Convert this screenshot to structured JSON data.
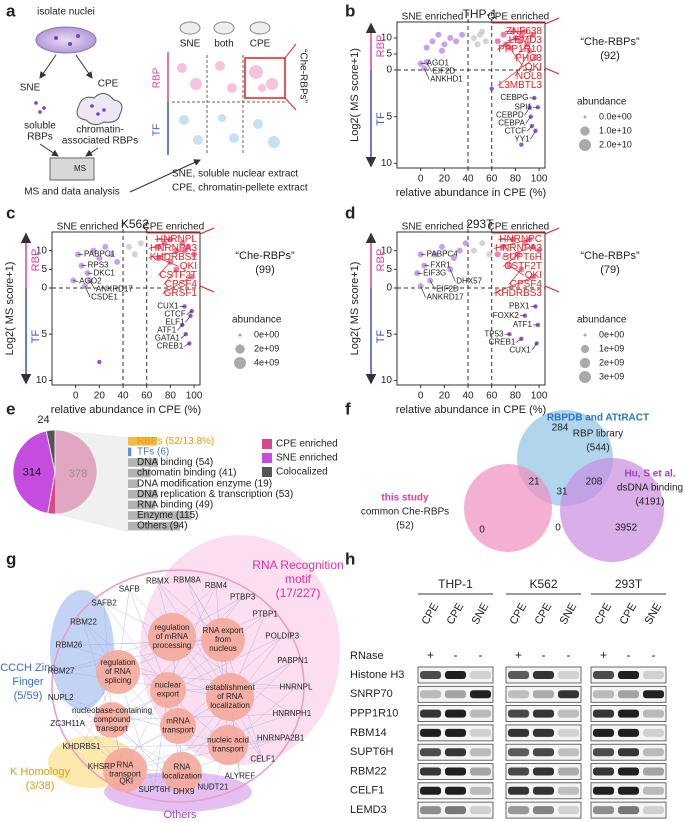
{
  "panel_labels": [
    "a",
    "b",
    "c",
    "d",
    "e",
    "f",
    "g",
    "h"
  ],
  "schematic": {
    "title": "isolate nuclei",
    "fractions": [
      "SNE",
      "CPE"
    ],
    "soluble": [
      "soluble",
      "RBPs"
    ],
    "chromatin": [
      "chromatin-",
      "associated RBPs"
    ],
    "ms_box": "MS",
    "ms": "MS and data analysis",
    "columns": [
      "SNE",
      "both",
      "CPE"
    ],
    "rows": [
      "RBP",
      "TF"
    ],
    "che": "“Che-RBPs”",
    "notes": [
      "SNE, soluble nuclear extract",
      "CPE, chromatin-pellete extract"
    ]
  },
  "chart_data": [
    {
      "type": "scatter",
      "title": "THP-1",
      "xlabel": "relative abundance in CPE (%)",
      "ylabel": "Log2( MS score+1)",
      "xlim": [
        -20,
        105
      ],
      "xticks": [
        0,
        20,
        40,
        60,
        80,
        100
      ],
      "ylim": [
        0,
        15
      ],
      "yticks": [
        0,
        5,
        10
      ],
      "tf_ylim": [
        0,
        10.5
      ],
      "tf_yticks": [
        5,
        10
      ],
      "dividers": [
        40,
        60
      ],
      "annotations": {
        "sne": "SNE enriched",
        "cpe": "CPE enriched",
        "rbp": "RBP",
        "tf": "TF",
        "che": "“Che-RBPs”",
        "count": "(92)"
      },
      "legend_title": "abundance",
      "size_ticks": [
        {
          "value": 0,
          "label": "0.0e+00"
        },
        {
          "value": 10000000000,
          "label": "1.0e+10"
        },
        {
          "value": 20000000000,
          "label": "2.0e+10"
        }
      ],
      "colors": {
        "sne": "#b98ae8",
        "both": "#c9c9c9",
        "cpe": "#e9609a",
        "tf": "#7b3fbf",
        "che_label": "#e8221f",
        "label": "#222222"
      },
      "rbp": {
        "x": [
          88,
          95,
          80,
          90,
          75,
          92,
          97,
          70,
          78,
          85,
          65,
          72,
          84,
          45,
          50,
          55,
          48,
          52,
          10,
          15,
          20,
          25,
          30,
          35,
          5,
          18,
          0,
          5,
          3
        ],
        "values": [
          12,
          11,
          10,
          8,
          7,
          6,
          4,
          11,
          12,
          11,
          9,
          8,
          9,
          10,
          11,
          9,
          8,
          12,
          9,
          11,
          8,
          10,
          9,
          11,
          7,
          6,
          2,
          2.5,
          0.5
        ],
        "labels": [
          "ZNF638",
          "LEMD3",
          "PPP1R10",
          "PHC3",
          "QKI",
          "NOL8",
          "L3MBTL3",
          null,
          null,
          null,
          null,
          null,
          null,
          null,
          null,
          null,
          null,
          null,
          null,
          null,
          null,
          null,
          null,
          null,
          null,
          null,
          "AGO1",
          "EIF2D",
          "ANKHD1"
        ]
      },
      "tf": {
        "x": [
          96,
          99,
          92,
          93,
          94,
          97,
          85,
          60
        ],
        "values": [
          3,
          4,
          4,
          5,
          6,
          6.5,
          8,
          2
        ],
        "labels": [
          "CEBPG",
          "SPI1",
          "CEBPD",
          "CEBPA",
          "CTCF",
          "YY1",
          null,
          null
        ]
      }
    },
    {
      "type": "scatter",
      "title": "K562",
      "xlabel": "relative abundance in CPE (%)",
      "ylabel": "Log2( MS score+1)",
      "xlim": [
        -20,
        105
      ],
      "xticks": [
        0,
        20,
        40,
        60,
        80,
        100
      ],
      "ylim": [
        0,
        15
      ],
      "yticks": [
        0,
        5,
        10
      ],
      "tf_ylim": [
        0,
        10.5
      ],
      "tf_yticks": [
        5,
        10
      ],
      "dividers": [
        40,
        60
      ],
      "annotations": {
        "sne": "SNE enriched",
        "cpe": "CPE enriched",
        "rbp": "RBP",
        "tf": "TF",
        "che": "“Che-RBPs”",
        "count": "(99)"
      },
      "legend_title": "abundance",
      "size_ticks": [
        {
          "value": 0,
          "label": "0e+00"
        },
        {
          "value": 2000000000,
          "label": "2e+09"
        },
        {
          "value": 4000000000,
          "label": "4e+09"
        }
      ],
      "colors": {
        "sne": "#b98ae8",
        "both": "#c9c9c9",
        "cpe": "#e9609a",
        "tf": "#7b3fbf",
        "che_label": "#e8221f",
        "label": "#222222"
      },
      "rbp": {
        "x": [
          80,
          75,
          92,
          70,
          80,
          85,
          98,
          90,
          95,
          85,
          70,
          100,
          45,
          50,
          55,
          15,
          20,
          25,
          30,
          35,
          2,
          5,
          10,
          -2,
          12,
          8
        ],
        "values": [
          13,
          12,
          10,
          8,
          7,
          5,
          3,
          12,
          11,
          10,
          11,
          9,
          11,
          9,
          12,
          10,
          8,
          11,
          9,
          7,
          9,
          6,
          4,
          2,
          2,
          0.5
        ],
        "labels": [
          "HNRNPL",
          "HNRNPA3",
          "KHDRBS1",
          "QKI",
          "CSTF2T",
          "CPSF4",
          "GRSF1",
          null,
          null,
          null,
          null,
          null,
          null,
          null,
          null,
          null,
          null,
          null,
          null,
          null,
          "PABPC1",
          "RPS3",
          "DKC1",
          "AGO2",
          "ANKRD17",
          "CSDE1"
        ]
      },
      "tf": {
        "x": [
          92,
          98,
          97,
          90,
          93,
          96,
          20
        ],
        "values": [
          2,
          2.5,
          3,
          4,
          5,
          6,
          8
        ],
        "labels": [
          "CUX1",
          "CTCF",
          "ELF1",
          "ATF1",
          "GATA1",
          "CREB1",
          null
        ]
      }
    },
    {
      "type": "scatter",
      "title": "293T",
      "xlabel": "relative abundance in CPE (%)",
      "ylabel": "Log2( MS score+1)",
      "xlim": [
        -20,
        105
      ],
      "xticks": [
        0,
        20,
        40,
        60,
        80,
        100
      ],
      "ylim": [
        0,
        15
      ],
      "yticks": [
        0,
        5,
        10
      ],
      "tf_ylim": [
        0,
        10.5
      ],
      "tf_yticks": [
        5,
        10
      ],
      "dividers": [
        40,
        60
      ],
      "annotations": {
        "sne": "SNE enriched",
        "cpe": "CPE enriched",
        "rbp": "RBP",
        "tf": "TF",
        "che": "“Che-RBPs”",
        "count": "(79)"
      },
      "legend_title": "abundance",
      "size_ticks": [
        {
          "value": 0,
          "label": "0e+00"
        },
        {
          "value": 1000000000,
          "label": "1e+09"
        },
        {
          "value": 2000000000,
          "label": "2e+09"
        },
        {
          "value": 3000000000,
          "label": "3e+09"
        }
      ],
      "colors": {
        "sne": "#b98ae8",
        "both": "#c9c9c9",
        "cpe": "#e9609a",
        "tf": "#7b3fbf",
        "che_label": "#e8221f",
        "label": "#222222"
      },
      "rbp": {
        "x": [
          78,
          92,
          95,
          82,
          75,
          85,
          95,
          88,
          70,
          100,
          65,
          45,
          52,
          58,
          12,
          18,
          28,
          33,
          38,
          0,
          3,
          -3,
          25,
          8,
          0
        ],
        "values": [
          13,
          13,
          11,
          9,
          6,
          5,
          3,
          12,
          11,
          10,
          9,
          10,
          12,
          9,
          9,
          11,
          8,
          10,
          12,
          9,
          6,
          4,
          5,
          2,
          0.5
        ],
        "labels": [
          "HNRNPC",
          "HNRNPA3",
          "SUPT6H",
          "CSTF2T",
          "QKI",
          "CPSF4",
          "KHDRBS3",
          null,
          null,
          null,
          null,
          null,
          null,
          null,
          null,
          null,
          null,
          null,
          null,
          "PABPC4",
          "FXR1",
          "EIF3G",
          "DHX57",
          "EIF2D",
          "ANKRD17"
        ]
      },
      "tf": {
        "x": [
          97,
          88,
          99,
          75,
          85,
          98
        ],
        "values": [
          2,
          3,
          4,
          5,
          5.5,
          6
        ],
        "labels": [
          "PBX1",
          "FOXK2",
          "ATF1",
          "TP53",
          "CREB1",
          "CUX1"
        ]
      }
    },
    {
      "type": "pie",
      "categories": [
        "CPE enriched",
        "SNE enriched",
        "Colocalized"
      ],
      "values": [
        378,
        314,
        24
      ],
      "colors": [
        "#d9488c",
        "#c44de0",
        "#555555"
      ]
    },
    {
      "type": "bar",
      "orientation": "horizontal",
      "categories": [
        "RBPs (52/13.8%)",
        "TFs (6)",
        "DNA binding (54)",
        "chromatin binding (41)",
        "DNA modification enzyme (19)",
        "DNA replication & transcription (53)",
        "RNA binding (49)",
        "Enzyme (115)",
        "Others (94)"
      ],
      "values": [
        52,
        6,
        54,
        41,
        19,
        53,
        49,
        115,
        94
      ],
      "xlim": [
        0,
        130
      ],
      "colors": [
        "#f5b942",
        "#5b8fd6",
        "#b3b3b3",
        "#b3b3b3",
        "#b3b3b3",
        "#b3b3b3",
        "#b3b3b3",
        "#b3b3b3",
        "#b3b3b3"
      ],
      "label_colors": [
        "#e89a10",
        "#3b73c6",
        "#222222",
        "#222222",
        "#222222",
        "#222222",
        "#222222",
        "#222222",
        "#222222"
      ]
    }
  ],
  "venn": {
    "sets": [
      {
        "title": "RBPDB and ATtRACT",
        "lines": [
          "RBP library",
          "(544)"
        ]
      },
      {
        "title": "this study",
        "lines": [
          "common Che-RBPs",
          "(52)"
        ]
      },
      {
        "title": "Hu, S et al.",
        "lines": [
          "dsDNA binding",
          "(4191)"
        ]
      }
    ],
    "regions": [
      284,
      21,
      31,
      208,
      0,
      0,
      3952
    ]
  },
  "network": {
    "clusters": [
      {
        "lines": [
          "RNA Recognition",
          "motif",
          "(17/227)"
        ]
      },
      {
        "lines": [
          "CCCH Zinc",
          "Finger",
          "(5/59)"
        ]
      },
      {
        "lines": [
          "K Homology",
          "(3/38)"
        ]
      },
      {
        "lines": [
          "Others"
        ]
      }
    ],
    "nodes": [
      "RBMX",
      "RBM8A",
      "RBM4",
      "PTBP3",
      "PTBP1",
      "POLDIP3",
      "PABPN1",
      "HNRNPL",
      "HNRNPH1",
      "HNRNPA2B1",
      "CELF1",
      "ALYREF",
      "NUDT21",
      "DHX9",
      "SUPT6H",
      "QKI",
      "KHSRP",
      "KHDRBS1",
      "ZC3H11A",
      "NUPL2",
      "RBM27",
      "RBM26",
      "RBM22",
      "SAFB2",
      "SAFB"
    ],
    "terms": [
      {
        "lines": [
          "regulation",
          "of mRNA",
          "processing"
        ]
      },
      {
        "lines": [
          "RNA export",
          "from",
          "nucleus"
        ]
      },
      {
        "lines": [
          "regulation",
          "of RNA",
          "splicing"
        ]
      },
      {
        "lines": [
          "nuclear",
          "export"
        ]
      },
      {
        "lines": [
          "establishment",
          "of RNA",
          "localization"
        ]
      },
      {
        "lines": [
          "nucleobase-containing",
          "compound",
          "transport"
        ]
      },
      {
        "lines": [
          "mRNA",
          "transport"
        ]
      },
      {
        "lines": [
          "nucleic acid",
          "transport"
        ]
      },
      {
        "lines": [
          "RNA",
          "transport"
        ]
      },
      {
        "lines": [
          "RNA",
          "localization"
        ]
      }
    ]
  },
  "blot": {
    "cell_lines": [
      "THP-1",
      "K562",
      "293T"
    ],
    "lanes": [
      "CPE",
      "CPE",
      "SNE"
    ],
    "treatment": "RNase",
    "signs": [
      "+",
      "-",
      "-"
    ],
    "rows": [
      "Histone H3",
      "SNRP70",
      "PPP1R10",
      "RBM14",
      "SUPT6H",
      "RBM22",
      "CELF1",
      "LEMD3"
    ]
  }
}
